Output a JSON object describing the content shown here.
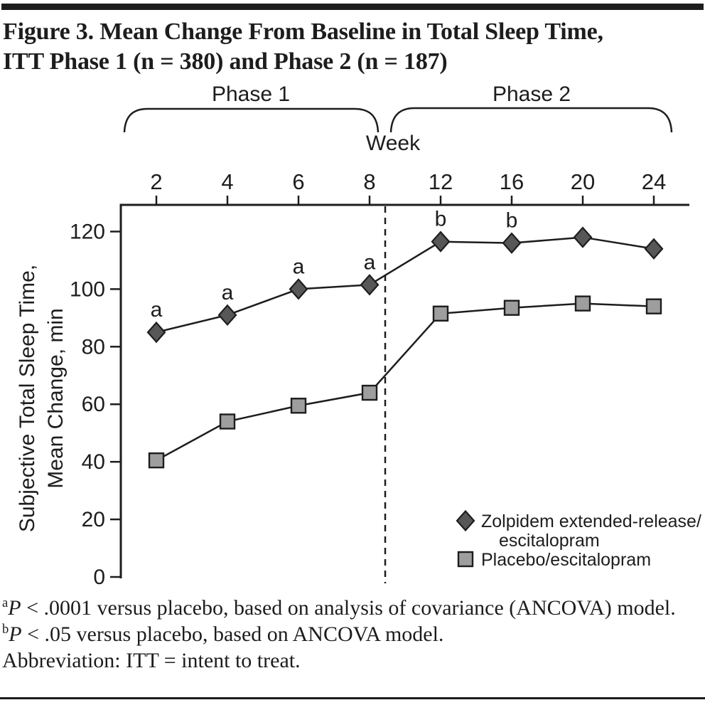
{
  "title": {
    "line1": "Figure 3. Mean Change From Baseline in Total Sleep Time,",
    "line2": "ITT Phase 1 (n = 380) and Phase 2 (n = 187)"
  },
  "chart_data": {
    "type": "line",
    "x_label": "Week",
    "x_categories": [
      "2",
      "4",
      "6",
      "8",
      "12",
      "16",
      "20",
      "24"
    ],
    "phase1_label": "Phase 1",
    "phase2_label": "Phase 2",
    "phase_boundary_after_week": 8,
    "y_label_lines": [
      "Subjective Total Sleep Time,",
      "Mean Change, min"
    ],
    "y_ticks": [
      0,
      20,
      40,
      60,
      80,
      100,
      120
    ],
    "y_range": [
      0,
      130
    ],
    "grid": false,
    "legend_position": "lower right inside plot",
    "series": [
      {
        "name": "Zolpidem extended-release/escitalopram",
        "marker": "diamond",
        "marker_fill": "#575757",
        "values": [
          85,
          91,
          100,
          101.5,
          116.5,
          116,
          118,
          114
        ],
        "point_labels": [
          "a",
          "a",
          "a",
          "a",
          "b",
          "b",
          "",
          ""
        ]
      },
      {
        "name": "Placebo/escitalopram",
        "marker": "square",
        "marker_fill": "#9e9e9e",
        "values": [
          40.5,
          54,
          59.5,
          64,
          91.5,
          93.5,
          95,
          94
        ],
        "point_labels": [
          "",
          "",
          "",
          "",
          "",
          "",
          "",
          ""
        ]
      }
    ],
    "legend": {
      "items": [
        {
          "marker": "diamond",
          "lines": [
            "Zolpidem extended-release/",
            "escitalopram"
          ]
        },
        {
          "marker": "square",
          "lines": [
            "Placebo/escitalopram"
          ]
        }
      ]
    }
  },
  "footnotes": [
    {
      "sup": "a",
      "p": "P",
      "text": " < .0001 versus placebo, based on analysis of covariance (ANCOVA) model."
    },
    {
      "sup": "b",
      "p": "P",
      "text": " < .05 versus placebo, based on ANCOVA model."
    },
    {
      "sup": "",
      "p": "",
      "text": "Abbreviation: ITT = intent to treat."
    }
  ],
  "colors": {
    "ink": "#1d1d1d",
    "diamond_fill": "#575757",
    "square_fill": "#9e9e9e"
  }
}
